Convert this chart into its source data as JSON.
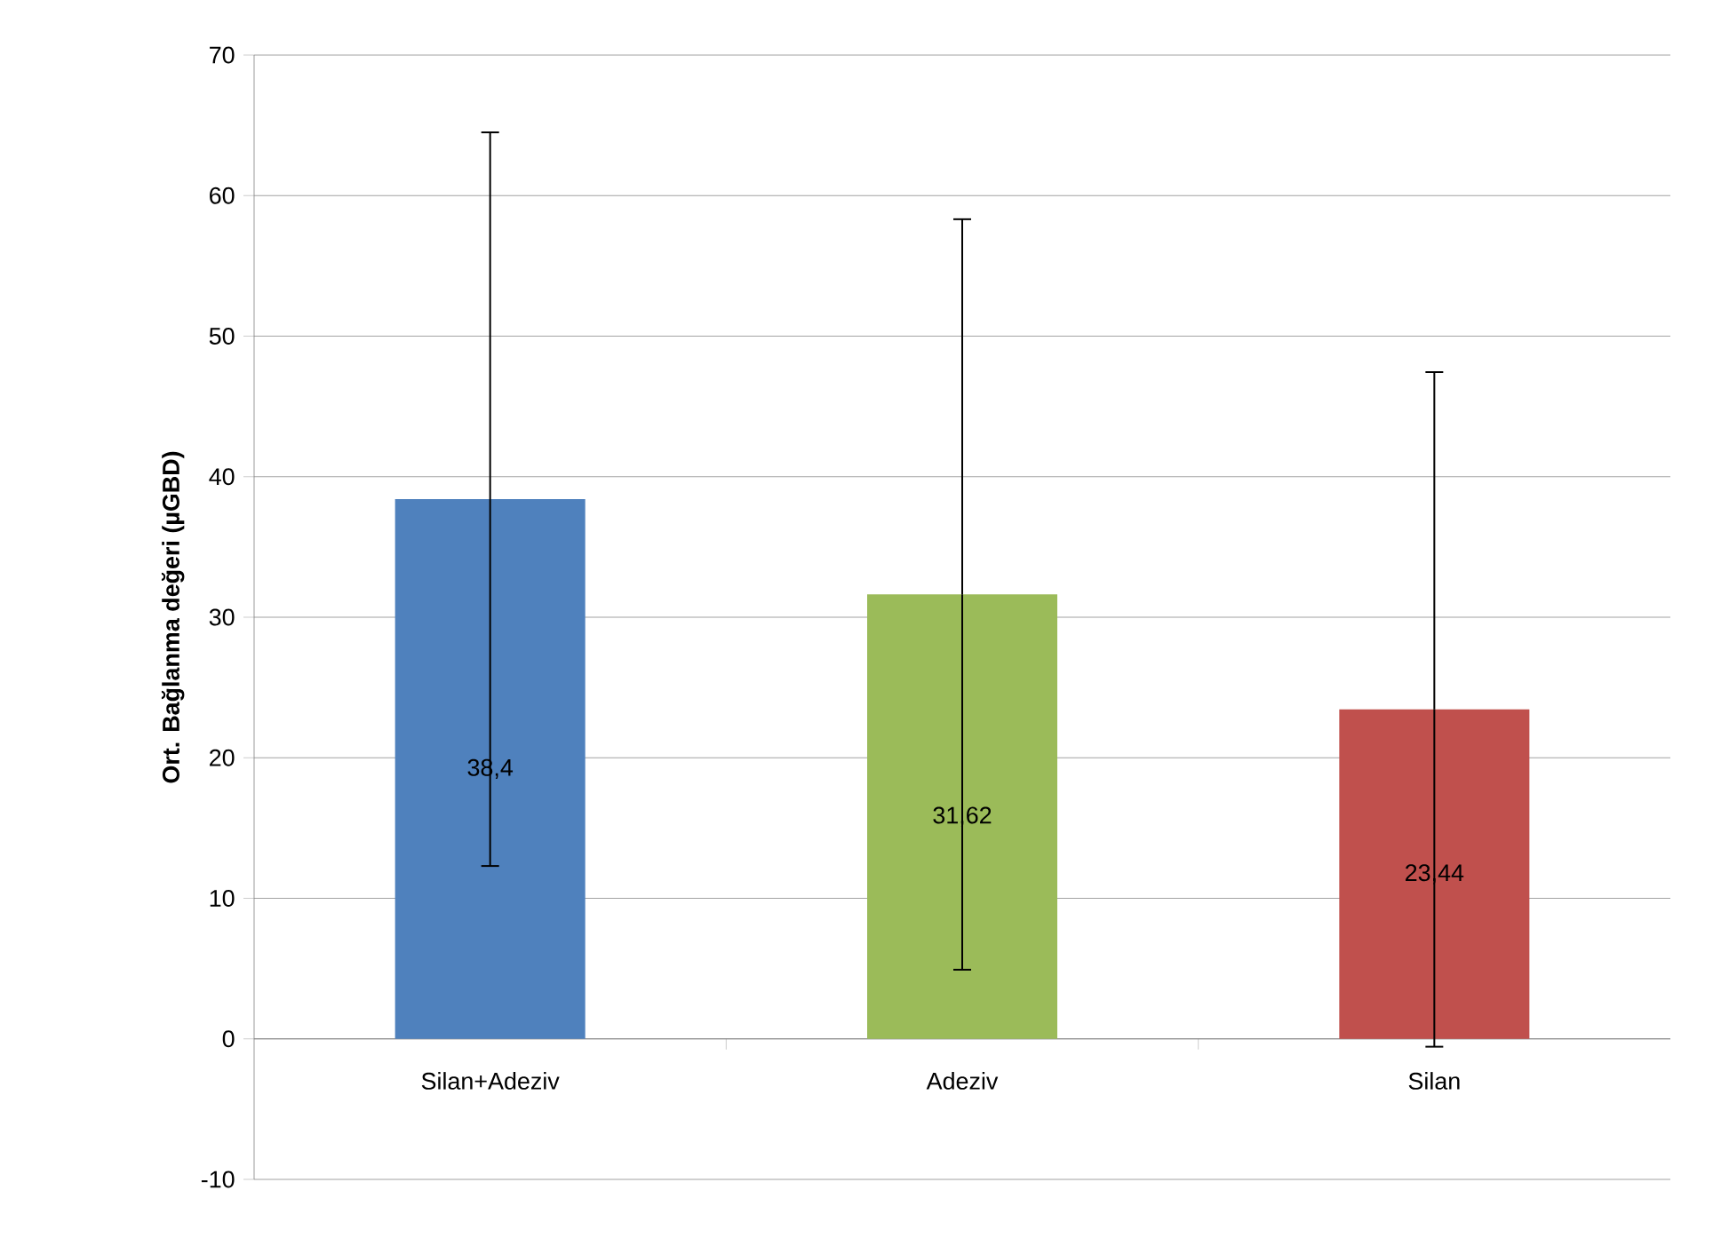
{
  "chart_data": {
    "type": "bar",
    "ylabel": "Ort. Bağlanma değeri (µGBD)",
    "categories": [
      "Silan+Adeziv",
      "Adeziv",
      "Silan"
    ],
    "values": [
      38.4,
      31.62,
      23.44
    ],
    "colors": [
      "#4f81bd",
      "#9bbb59",
      "#c0504d"
    ],
    "errors": [
      26.1,
      26.7,
      24.0
    ],
    "value_labels": [
      "38,4",
      "31,62",
      "23,44"
    ],
    "ylim": [
      -10,
      70
    ],
    "yticks": [
      -10,
      0,
      10,
      20,
      30,
      40,
      50,
      60,
      70
    ],
    "grid": "y"
  }
}
